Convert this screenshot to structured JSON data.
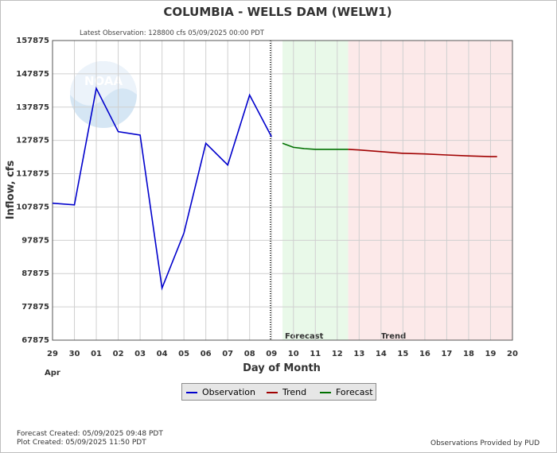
{
  "chart_data": {
    "type": "line",
    "title": "COLUMBIA - WELLS DAM  (WELW1)",
    "subtitle": "Latest Observation: 128800 cfs 05/09/2025 00:00 PDT",
    "xlabel": "Day of Month",
    "ylabel": "Inflow, cfs",
    "month_label": "Apr",
    "x_ticks": [
      "29",
      "30",
      "01",
      "02",
      "03",
      "04",
      "05",
      "06",
      "07",
      "08",
      "09",
      "10",
      "11",
      "12",
      "13",
      "14",
      "15",
      "16",
      "17",
      "18",
      "19",
      "20"
    ],
    "y_ticks": [
      "157875",
      "147875",
      "137875",
      "127875",
      "117875",
      "107875",
      "97875",
      "87875",
      "77875",
      "67875"
    ],
    "ylim": [
      67875,
      157875
    ],
    "grid": true,
    "zones": [
      {
        "label": "Forecast",
        "from": 10.5,
        "to": 13.5,
        "color": "#e9f9e9"
      },
      {
        "label": "Trend",
        "from": 13.5,
        "to": 21,
        "color": "#fce9e9"
      }
    ],
    "series": [
      {
        "name": "Observation",
        "color": "#0000cc",
        "points": [
          [
            0,
            109000
          ],
          [
            1,
            108500
          ],
          [
            2,
            143500
          ],
          [
            3,
            130500
          ],
          [
            4,
            129500
          ],
          [
            5,
            83500
          ],
          [
            6,
            100000
          ],
          [
            7,
            127000
          ],
          [
            8,
            120500
          ],
          [
            9,
            141500
          ],
          [
            10,
            129000
          ]
        ]
      },
      {
        "name": "Forecast",
        "color": "#007000",
        "points": [
          [
            10.5,
            127000
          ],
          [
            11,
            125800
          ],
          [
            11.5,
            125400
          ],
          [
            12,
            125200
          ],
          [
            12.5,
            125200
          ],
          [
            13,
            125200
          ],
          [
            13.5,
            125200
          ]
        ]
      },
      {
        "name": "Trend",
        "color": "#a00000",
        "points": [
          [
            13.5,
            125200
          ],
          [
            14,
            125000
          ],
          [
            15,
            124500
          ],
          [
            16,
            124000
          ],
          [
            17,
            123800
          ],
          [
            18,
            123500
          ],
          [
            19,
            123200
          ],
          [
            20,
            123000
          ],
          [
            20.3,
            123000
          ]
        ]
      }
    ],
    "legend": [
      "Observation",
      "Trend",
      "Forecast"
    ],
    "legend_position": "bottom-center"
  },
  "footer": {
    "forecast_created": "Forecast Created: 05/09/2025 09:48 PDT",
    "plot_created": "Plot Created: 05/09/2025 11:50 PDT",
    "provided_by": "Observations Provided by PUD"
  },
  "watermark": "NOAA"
}
